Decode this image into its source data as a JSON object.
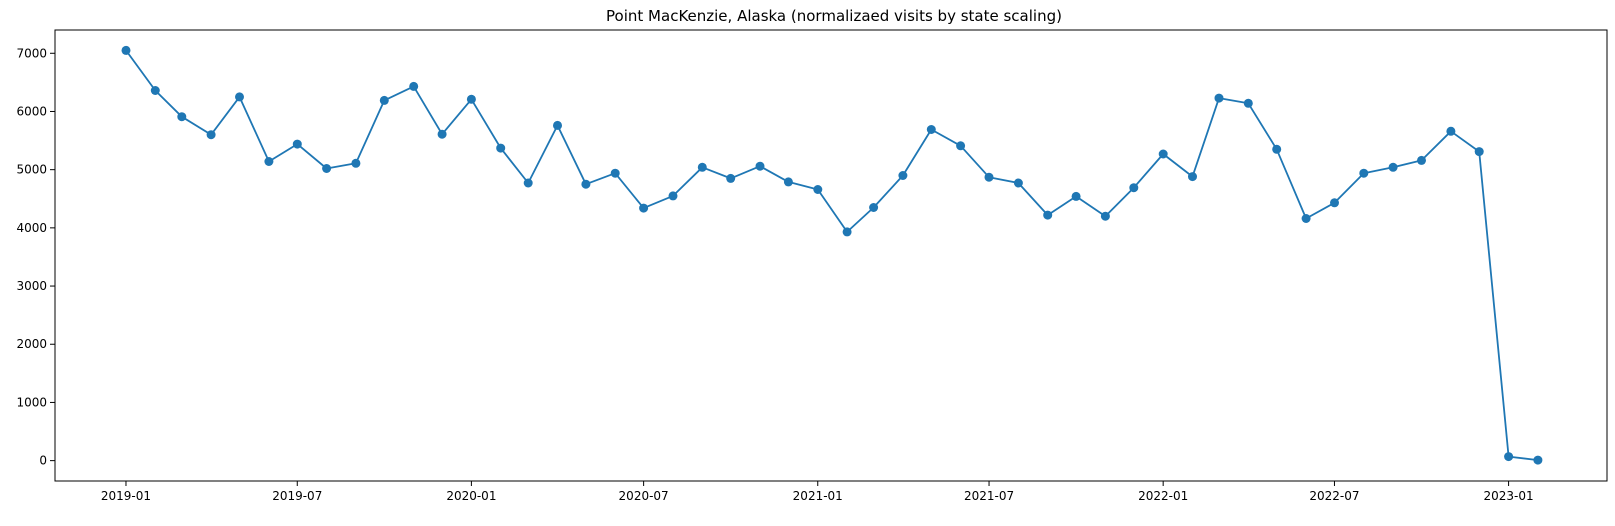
{
  "chart_data": {
    "type": "line",
    "title": "Point MacKenzie, Alaska (normalizaed visits by state scaling)",
    "xlabel": "",
    "ylabel": "",
    "x_ticks": [
      "2019-01",
      "2019-07",
      "2020-01",
      "2020-07",
      "2021-01",
      "2021-07",
      "2022-01",
      "2022-07",
      "2023-01"
    ],
    "y_ticks": [
      0,
      1000,
      2000,
      3000,
      4000,
      5000,
      6000,
      7000
    ],
    "xlim": [
      "2018-10-18",
      "2023-04-15"
    ],
    "ylim": [
      -350,
      7400
    ],
    "grid": false,
    "legend": "none",
    "series": [
      {
        "color": "#1f77b4",
        "marker": "circle",
        "x": [
          "2019-01",
          "2019-02",
          "2019-03",
          "2019-04",
          "2019-05",
          "2019-06",
          "2019-07",
          "2019-08",
          "2019-09",
          "2019-10",
          "2019-11",
          "2019-12",
          "2020-01",
          "2020-02",
          "2020-03",
          "2020-04",
          "2020-05",
          "2020-06",
          "2020-07",
          "2020-08",
          "2020-09",
          "2020-10",
          "2020-11",
          "2020-12",
          "2021-01",
          "2021-02",
          "2021-03",
          "2021-04",
          "2021-05",
          "2021-06",
          "2021-07",
          "2021-08",
          "2021-09",
          "2021-10",
          "2021-11",
          "2021-12",
          "2022-01",
          "2022-02",
          "2022-03",
          "2022-04",
          "2022-05",
          "2022-06",
          "2022-07",
          "2022-08",
          "2022-09",
          "2022-10",
          "2022-11",
          "2022-12",
          "2023-01",
          "2023-02"
        ],
        "values": [
          7050,
          6360,
          5910,
          5600,
          6250,
          5140,
          5440,
          5020,
          5110,
          6190,
          6430,
          5610,
          6210,
          5370,
          4770,
          5760,
          4750,
          4940,
          4340,
          4550,
          5040,
          4850,
          5060,
          4790,
          4660,
          3930,
          4350,
          4900,
          5690,
          5410,
          4870,
          4770,
          4220,
          4540,
          4200,
          4690,
          5270,
          4880,
          6230,
          6140,
          5350,
          4160,
          4430,
          4940,
          5040,
          5160,
          5660,
          5310,
          70,
          10
        ]
      }
    ]
  }
}
